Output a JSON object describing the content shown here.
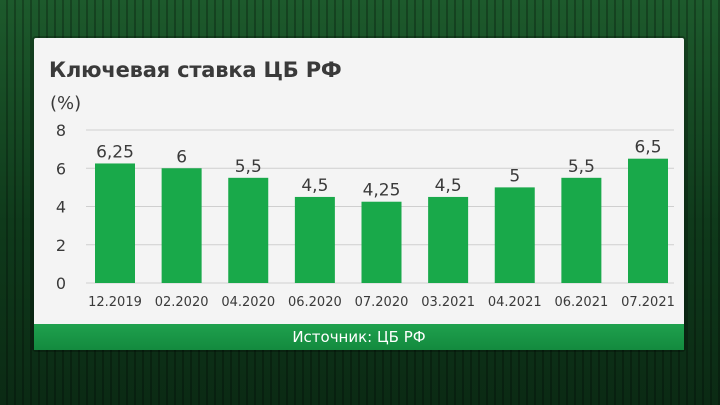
{
  "chart_data": {
    "type": "bar",
    "title": "Ключевая ставка ЦБ РФ",
    "ylabel": "(%)",
    "xlabel": "",
    "ylim": [
      0,
      8
    ],
    "yticks": [
      "0",
      "2",
      "4",
      "6",
      "8"
    ],
    "grid": true,
    "categories": [
      "12.2019",
      "02.2020",
      "04.2020",
      "06.2020",
      "07.2020",
      "03.2021",
      "04.2021",
      "06.2021",
      "07.2021"
    ],
    "values": [
      6.25,
      6,
      5.5,
      4.5,
      4.25,
      4.5,
      5,
      5.5,
      6.5
    ],
    "value_labels": [
      "6,25",
      "6",
      "5,5",
      "4,5",
      "4,25",
      "4,5",
      "5",
      "5,5",
      "6,5"
    ],
    "bar_color": "#19a94a",
    "grid_color": "#cfcfcf"
  },
  "footer": {
    "source": "Источник: ЦБ РФ",
    "bar_color": "#1a9b49"
  }
}
